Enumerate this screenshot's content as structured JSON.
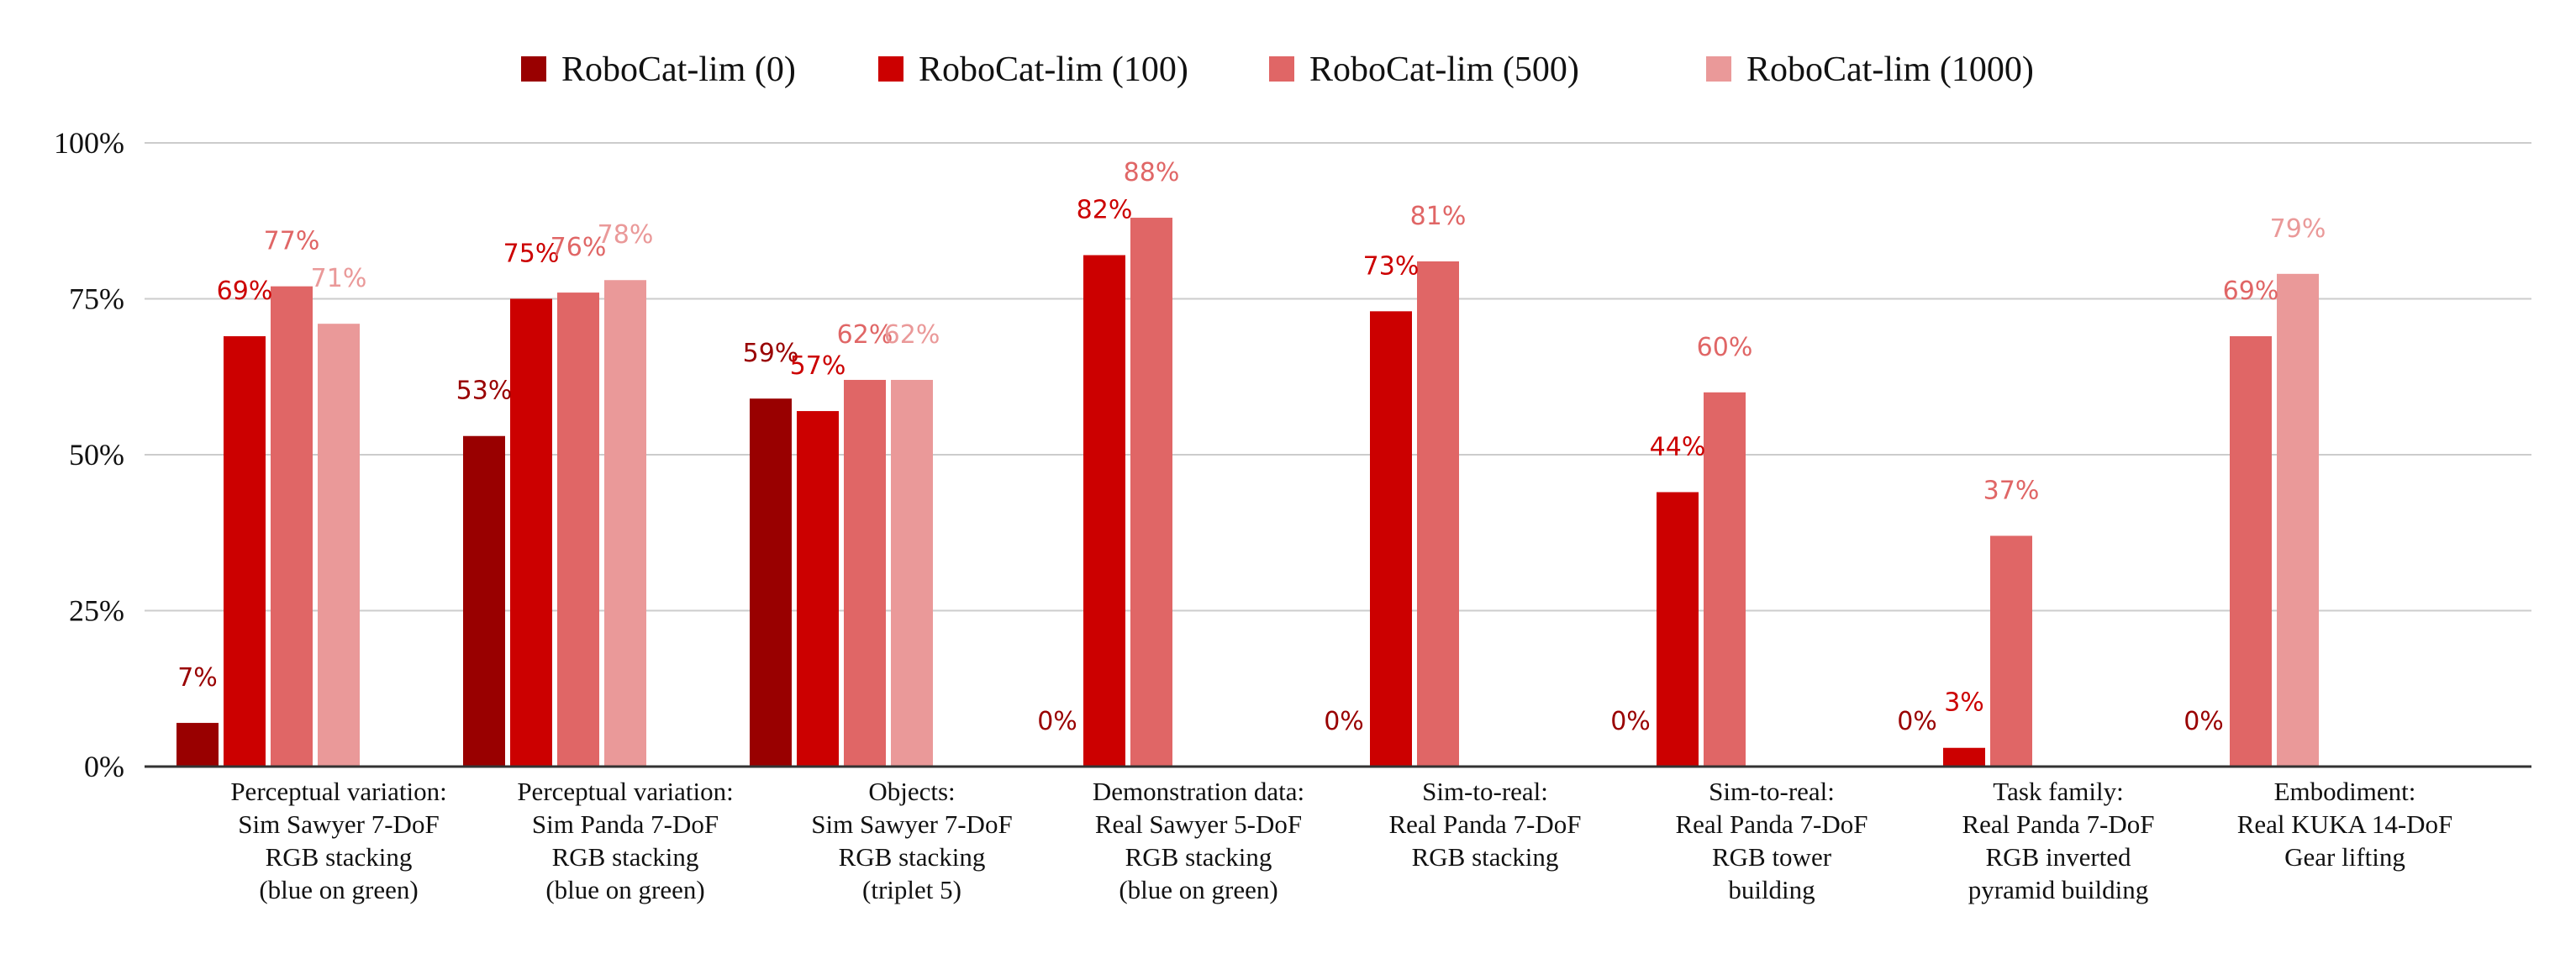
{
  "chart_data": {
    "type": "bar",
    "title": "",
    "xlabel": "",
    "ylabel": "",
    "ylim": [
      0,
      100
    ],
    "y_ticks": [
      "0%",
      "25%",
      "50%",
      "75%",
      "100%"
    ],
    "grid": true,
    "legend_position": "top-center",
    "categories": [
      [
        "Perceptual variation:",
        "Sim Sawyer 7-DoF",
        "RGB stacking",
        "(blue on green)"
      ],
      [
        "Perceptual variation:",
        "Sim Panda 7-DoF",
        "RGB stacking",
        "(blue on green)"
      ],
      [
        "Objects:",
        "Sim Sawyer 7-DoF",
        "RGB stacking",
        "(triplet 5)"
      ],
      [
        "Demonstration data:",
        "Real Sawyer 5-DoF",
        "RGB stacking",
        "(blue on green)"
      ],
      [
        "Sim-to-real:",
        "Real Panda 7-DoF",
        "RGB stacking"
      ],
      [
        "Sim-to-real:",
        "Real Panda 7-DoF",
        "RGB tower",
        "building"
      ],
      [
        "Task family:",
        "Real Panda 7-DoF",
        "RGB inverted",
        "pyramid building"
      ],
      [
        "Embodiment:",
        "Real KUKA 14-DoF",
        "Gear lifting"
      ]
    ],
    "series": [
      {
        "name": "RoboCat-lim (0)",
        "color": "#990000",
        "values": [
          7,
          53,
          59,
          0,
          0,
          0,
          0,
          0
        ],
        "labels": [
          "7%",
          "53%",
          "59%",
          "0%",
          "0%",
          "0%",
          "0%",
          "0%"
        ]
      },
      {
        "name": "RoboCat-lim (100)",
        "color": "#cc0000",
        "values": [
          69,
          75,
          57,
          82,
          73,
          44,
          3,
          null
        ],
        "labels": [
          "69%",
          "75%",
          "57%",
          "82%",
          "73%",
          "44%",
          "3%",
          ""
        ]
      },
      {
        "name": "RoboCat-lim (500)",
        "color": "#e06666",
        "values": [
          77,
          76,
          62,
          88,
          81,
          60,
          37,
          69
        ],
        "labels": [
          "77%",
          "76%",
          "62%",
          "88%",
          "81%",
          "60%",
          "37%",
          "69%"
        ]
      },
      {
        "name": "RoboCat-lim (1000)",
        "color": "#ea9999",
        "values": [
          71,
          78,
          62,
          null,
          null,
          null,
          null,
          79
        ],
        "labels": [
          "71%",
          "78%",
          "62%",
          "",
          "",
          "",
          "",
          "79%"
        ]
      }
    ]
  }
}
